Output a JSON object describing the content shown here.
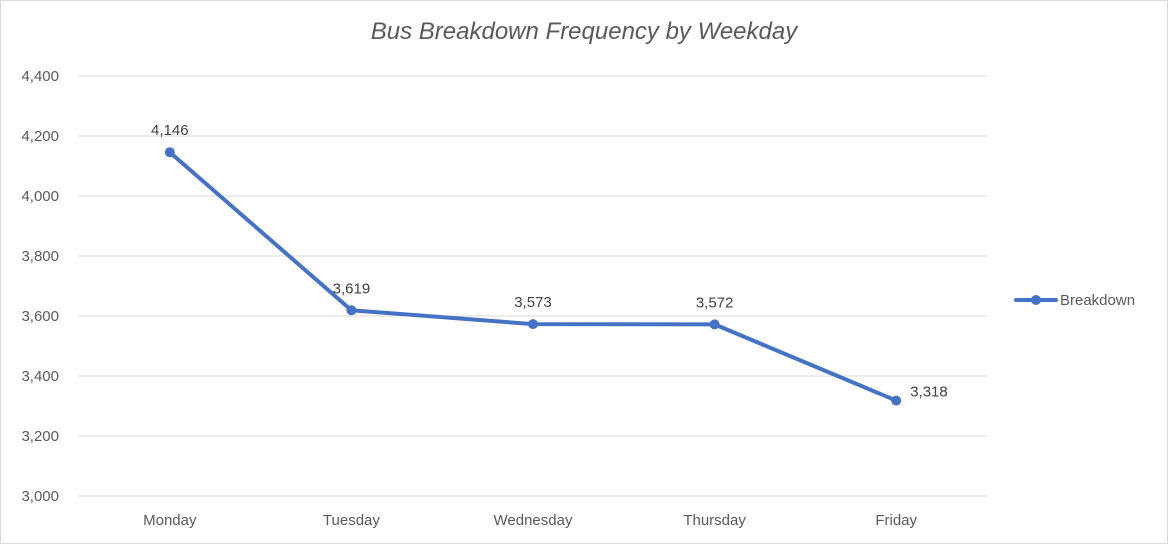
{
  "chart_data": {
    "type": "line",
    "title": "Bus Breakdown Frequency by Weekday",
    "xlabel": "",
    "ylabel": "",
    "categories": [
      "Monday",
      "Tuesday",
      "Wednesday",
      "Thursday",
      "Friday"
    ],
    "series": [
      {
        "name": "Breakdown",
        "values": [
          4146,
          3619,
          3573,
          3572,
          3318
        ],
        "data_labels": [
          "4,146",
          "3,619",
          "3,573",
          "3,572",
          "3,318"
        ]
      }
    ],
    "ylim": [
      3000,
      4400
    ],
    "yticks": [
      3000,
      3200,
      3400,
      3600,
      3800,
      4000,
      4200,
      4400
    ],
    "ytick_labels": [
      "3,000",
      "3,200",
      "3,400",
      "3,600",
      "3,800",
      "4,000",
      "4,200",
      "4,400"
    ],
    "grid": true,
    "legend": "right",
    "colors": {
      "series": "#4472c4",
      "grid": "#d9d9d9",
      "text": "#595959"
    }
  }
}
